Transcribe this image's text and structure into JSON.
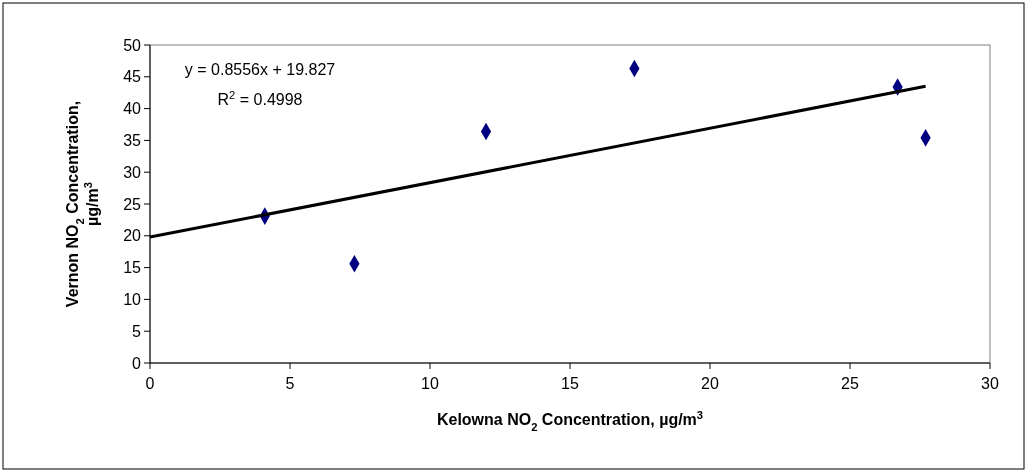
{
  "chart_data": {
    "type": "scatter",
    "xlabel": "Kelowna NO$_{2}$ Concentration, µg/m$^{3}$",
    "ylabel": "Vernon NO$_{2}$ Concentration, µg/m$^{3}$",
    "xlim": [
      0,
      30
    ],
    "xticks": [
      0,
      5,
      10,
      15,
      20,
      25,
      30
    ],
    "ylim": [
      0,
      50
    ],
    "yticks": [
      0,
      5,
      10,
      15,
      20,
      25,
      30,
      35,
      40,
      45,
      50
    ],
    "grid": false,
    "annotations": [
      "y = 0.8556x + 19.827",
      "R$^{2}$ = 0.4998"
    ],
    "series": [
      {
        "color": "#000080",
        "marker": "diamond",
        "x": [
          4.1,
          7.3,
          12.0,
          17.3,
          26.7,
          27.7
        ],
        "values": [
          23.1,
          15.6,
          36.4,
          46.3,
          43.4,
          35.4
        ]
      },
      {
        "type": "line",
        "color": "#000000",
        "line_style": "solid",
        "x": [
          0,
          27.7
        ],
        "values": [
          19.8,
          43.5
        ]
      }
    ]
  }
}
